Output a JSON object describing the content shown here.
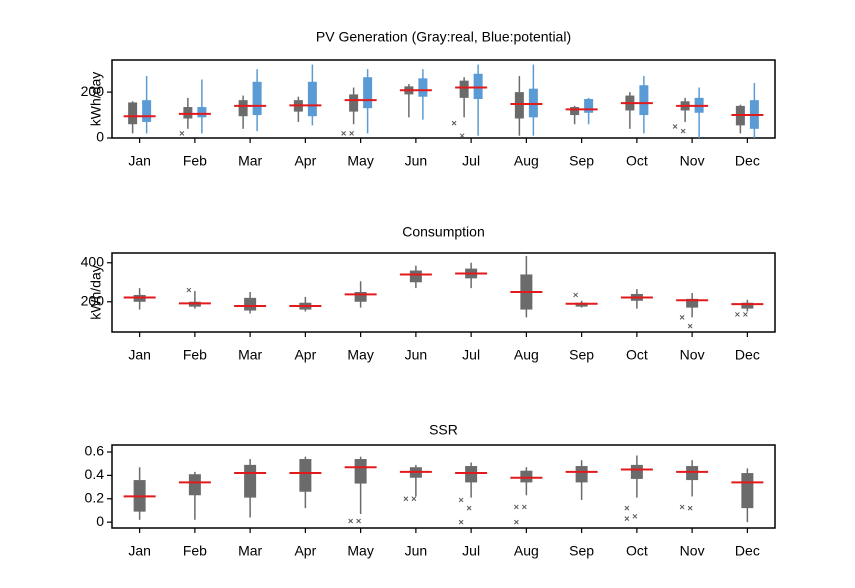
{
  "chart_data": [
    {
      "type": "box",
      "title": "PV Generation (Gray:real, Blue:potential)",
      "ylabel": "kWh/day",
      "categories": [
        "Jan",
        "Feb",
        "Mar",
        "Apr",
        "May",
        "Jun",
        "Jul",
        "Aug",
        "Sep",
        "Oct",
        "Nov",
        "Dec"
      ],
      "ylim": [
        0,
        340
      ],
      "yticks": [
        0,
        200
      ],
      "median_color": "#e31a1c",
      "series": [
        {
          "color": "#6b6b6b",
          "boxes": [
            {
              "low": 20,
              "q1": 60,
              "med": 95,
              "q3": 155,
              "high": 160,
              "outliers": []
            },
            {
              "low": 40,
              "q1": 85,
              "med": 105,
              "q3": 135,
              "high": 175,
              "outliers": [
                20
              ]
            },
            {
              "low": 40,
              "q1": 95,
              "med": 140,
              "q3": 165,
              "high": 185,
              "outliers": []
            },
            {
              "low": 70,
              "q1": 115,
              "med": 142,
              "q3": 165,
              "high": 180,
              "outliers": []
            },
            {
              "low": 60,
              "q1": 115,
              "med": 165,
              "q3": 190,
              "high": 220,
              "outliers": [
                20,
                20
              ]
            },
            {
              "low": 90,
              "q1": 190,
              "med": 208,
              "q3": 225,
              "high": 235,
              "outliers": []
            },
            {
              "low": 90,
              "q1": 175,
              "med": 220,
              "q3": 250,
              "high": 265,
              "outliers": [
                65,
                10
              ]
            },
            {
              "low": 10,
              "q1": 85,
              "med": 148,
              "q3": 200,
              "high": 270,
              "outliers": []
            },
            {
              "low": 60,
              "q1": 100,
              "med": 125,
              "q3": 135,
              "high": 140,
              "outliers": []
            },
            {
              "low": 40,
              "q1": 120,
              "med": 152,
              "q3": 185,
              "high": 200,
              "outliers": []
            },
            {
              "low": 70,
              "q1": 120,
              "med": 140,
              "q3": 160,
              "high": 175,
              "outliers": [
                50,
                30
              ]
            },
            {
              "low": 20,
              "q1": 55,
              "med": 100,
              "q3": 140,
              "high": 145,
              "outliers": []
            }
          ]
        },
        {
          "color": "#5b9bd5",
          "boxes": [
            {
              "low": 20,
              "q1": 70,
              "q3": 165,
              "high": 270,
              "outliers": []
            },
            {
              "low": 20,
              "q1": 90,
              "q3": 135,
              "high": 255,
              "outliers": []
            },
            {
              "low": 30,
              "q1": 100,
              "q3": 245,
              "high": 300,
              "outliers": []
            },
            {
              "low": 55,
              "q1": 95,
              "q3": 245,
              "high": 320,
              "outliers": []
            },
            {
              "low": 20,
              "q1": 130,
              "q3": 265,
              "high": 300,
              "outliers": []
            },
            {
              "low": 80,
              "q1": 180,
              "q3": 260,
              "high": 300,
              "outliers": []
            },
            {
              "low": 10,
              "q1": 170,
              "q3": 280,
              "high": 320,
              "outliers": []
            },
            {
              "low": 10,
              "q1": 90,
              "q3": 215,
              "high": 320,
              "outliers": []
            },
            {
              "low": 60,
              "q1": 110,
              "q3": 170,
              "high": 175,
              "outliers": []
            },
            {
              "low": 20,
              "q1": 100,
              "q3": 230,
              "high": 270,
              "outliers": []
            },
            {
              "low": 0,
              "q1": 110,
              "q3": 175,
              "high": 220,
              "outliers": []
            },
            {
              "low": 0,
              "q1": 40,
              "q3": 165,
              "high": 240,
              "outliers": []
            }
          ]
        }
      ]
    },
    {
      "type": "box",
      "title": "Consumption",
      "ylabel": "kWh/day",
      "categories": [
        "Jan",
        "Feb",
        "Mar",
        "Apr",
        "May",
        "Jun",
        "Jul",
        "Aug",
        "Sep",
        "Oct",
        "Nov",
        "Dec"
      ],
      "ylim": [
        45,
        450
      ],
      "yticks": [
        200,
        400
      ],
      "median_color": "#e31a1c",
      "series": [
        {
          "color": "#6b6b6b",
          "boxes": [
            {
              "low": 160,
              "q1": 200,
              "med": 222,
              "q3": 235,
              "high": 270,
              "outliers": []
            },
            {
              "low": 165,
              "q1": 175,
              "med": 192,
              "q3": 200,
              "high": 255,
              "outliers": [
                260
              ]
            },
            {
              "low": 140,
              "q1": 155,
              "med": 178,
              "q3": 220,
              "high": 250,
              "outliers": []
            },
            {
              "low": 150,
              "q1": 160,
              "med": 178,
              "q3": 195,
              "high": 225,
              "outliers": []
            },
            {
              "low": 170,
              "q1": 200,
              "med": 238,
              "q3": 250,
              "high": 305,
              "outliers": []
            },
            {
              "low": 270,
              "q1": 300,
              "med": 340,
              "q3": 360,
              "high": 385,
              "outliers": []
            },
            {
              "low": 270,
              "q1": 320,
              "med": 345,
              "q3": 370,
              "high": 400,
              "outliers": []
            },
            {
              "low": 120,
              "q1": 160,
              "med": 250,
              "q3": 340,
              "high": 435,
              "outliers": []
            },
            {
              "low": 170,
              "q1": 175,
              "med": 190,
              "q3": 195,
              "high": 205,
              "outliers": [
                235
              ]
            },
            {
              "low": 165,
              "q1": 205,
              "med": 222,
              "q3": 240,
              "high": 265,
              "outliers": []
            },
            {
              "low": 120,
              "q1": 170,
              "med": 208,
              "q3": 215,
              "high": 245,
              "outliers": [
                120,
                75
              ]
            },
            {
              "low": 150,
              "q1": 165,
              "med": 188,
              "q3": 195,
              "high": 210,
              "outliers": [
                135,
                135
              ]
            }
          ]
        }
      ]
    },
    {
      "type": "box",
      "title": "SSR",
      "categories": [
        "Jan",
        "Feb",
        "Mar",
        "Apr",
        "May",
        "Jun",
        "Jul",
        "Aug",
        "Sep",
        "Oct",
        "Nov",
        "Dec"
      ],
      "ylim": [
        -0.05,
        0.66
      ],
      "yticks": [
        0,
        0.2,
        0.4,
        0.6
      ],
      "median_color": "#e31a1c",
      "series": [
        {
          "color": "#6b6b6b",
          "boxes": [
            {
              "low": 0.02,
              "q1": 0.09,
              "med": 0.22,
              "q3": 0.36,
              "high": 0.47,
              "outliers": []
            },
            {
              "low": 0.02,
              "q1": 0.23,
              "med": 0.34,
              "q3": 0.41,
              "high": 0.43,
              "outliers": []
            },
            {
              "low": 0.04,
              "q1": 0.21,
              "med": 0.42,
              "q3": 0.49,
              "high": 0.54,
              "outliers": []
            },
            {
              "low": 0.12,
              "q1": 0.26,
              "med": 0.42,
              "q3": 0.54,
              "high": 0.56,
              "outliers": []
            },
            {
              "low": 0.07,
              "q1": 0.33,
              "med": 0.47,
              "q3": 0.54,
              "high": 0.56,
              "outliers": [
                0.01,
                0.01
              ]
            },
            {
              "low": 0.22,
              "q1": 0.38,
              "med": 0.43,
              "q3": 0.47,
              "high": 0.49,
              "outliers": [
                0.2,
                0.2
              ]
            },
            {
              "low": 0.21,
              "q1": 0.34,
              "med": 0.42,
              "q3": 0.48,
              "high": 0.51,
              "outliers": [
                0.19,
                0.12,
                0
              ]
            },
            {
              "low": 0.23,
              "q1": 0.34,
              "med": 0.38,
              "q3": 0.44,
              "high": 0.47,
              "outliers": [
                0.13,
                0.13,
                0
              ]
            },
            {
              "low": 0.19,
              "q1": 0.34,
              "med": 0.43,
              "q3": 0.48,
              "high": 0.53,
              "outliers": []
            },
            {
              "low": 0.21,
              "q1": 0.37,
              "med": 0.45,
              "q3": 0.49,
              "high": 0.57,
              "outliers": [
                0.12,
                0.05,
                0.03
              ]
            },
            {
              "low": 0.22,
              "q1": 0.36,
              "med": 0.43,
              "q3": 0.48,
              "high": 0.53,
              "outliers": [
                0.13,
                0.12
              ]
            },
            {
              "low": 0,
              "q1": 0.12,
              "med": 0.34,
              "q3": 0.42,
              "high": 0.46,
              "outliers": []
            }
          ]
        }
      ]
    }
  ]
}
